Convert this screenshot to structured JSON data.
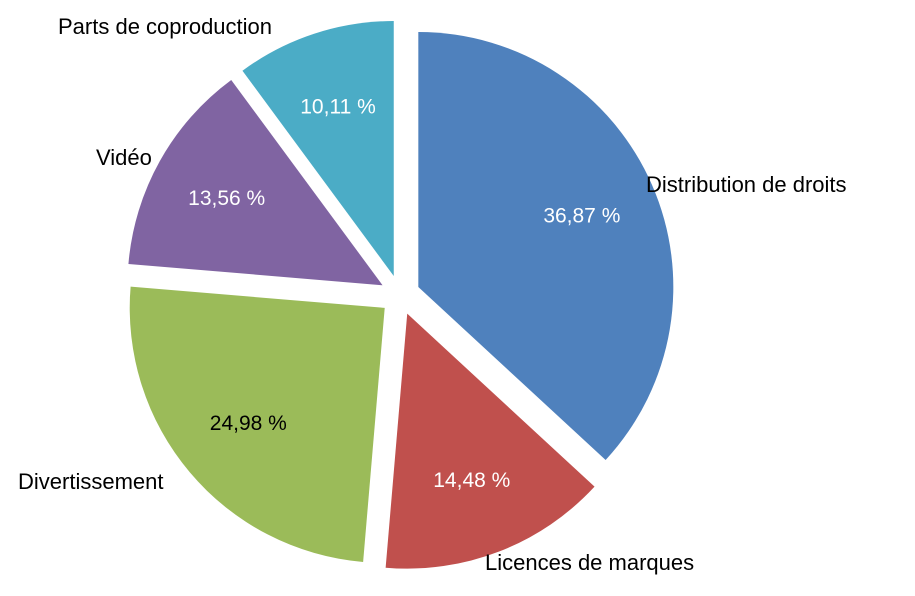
{
  "chart_data": {
    "type": "pie",
    "title": "",
    "slices": [
      {
        "label": "Distribution de droits",
        "value": 36.87,
        "value_label": "36,87 %",
        "color": "#4F81BD",
        "value_text_color": "#FFFFFF"
      },
      {
        "label": "Licences de marques",
        "value": 14.48,
        "value_label": "14,48 %",
        "color": "#C0504D",
        "value_text_color": "#FFFFFF"
      },
      {
        "label": "Divertissement",
        "value": 24.98,
        "value_label": "24,98 %",
        "color": "#9BBB59",
        "value_text_color": "#000000"
      },
      {
        "label": "Vidéo",
        "value": 13.56,
        "value_label": "13,56 %",
        "color": "#8064A2",
        "value_text_color": "#FFFFFF"
      },
      {
        "label": "Parts de coproduction",
        "value": 10.11,
        "value_label": "10,11 %",
        "color": "#4BACC6",
        "value_text_color": "#FFFFFF"
      }
    ],
    "exploded": true,
    "legend": "none"
  }
}
